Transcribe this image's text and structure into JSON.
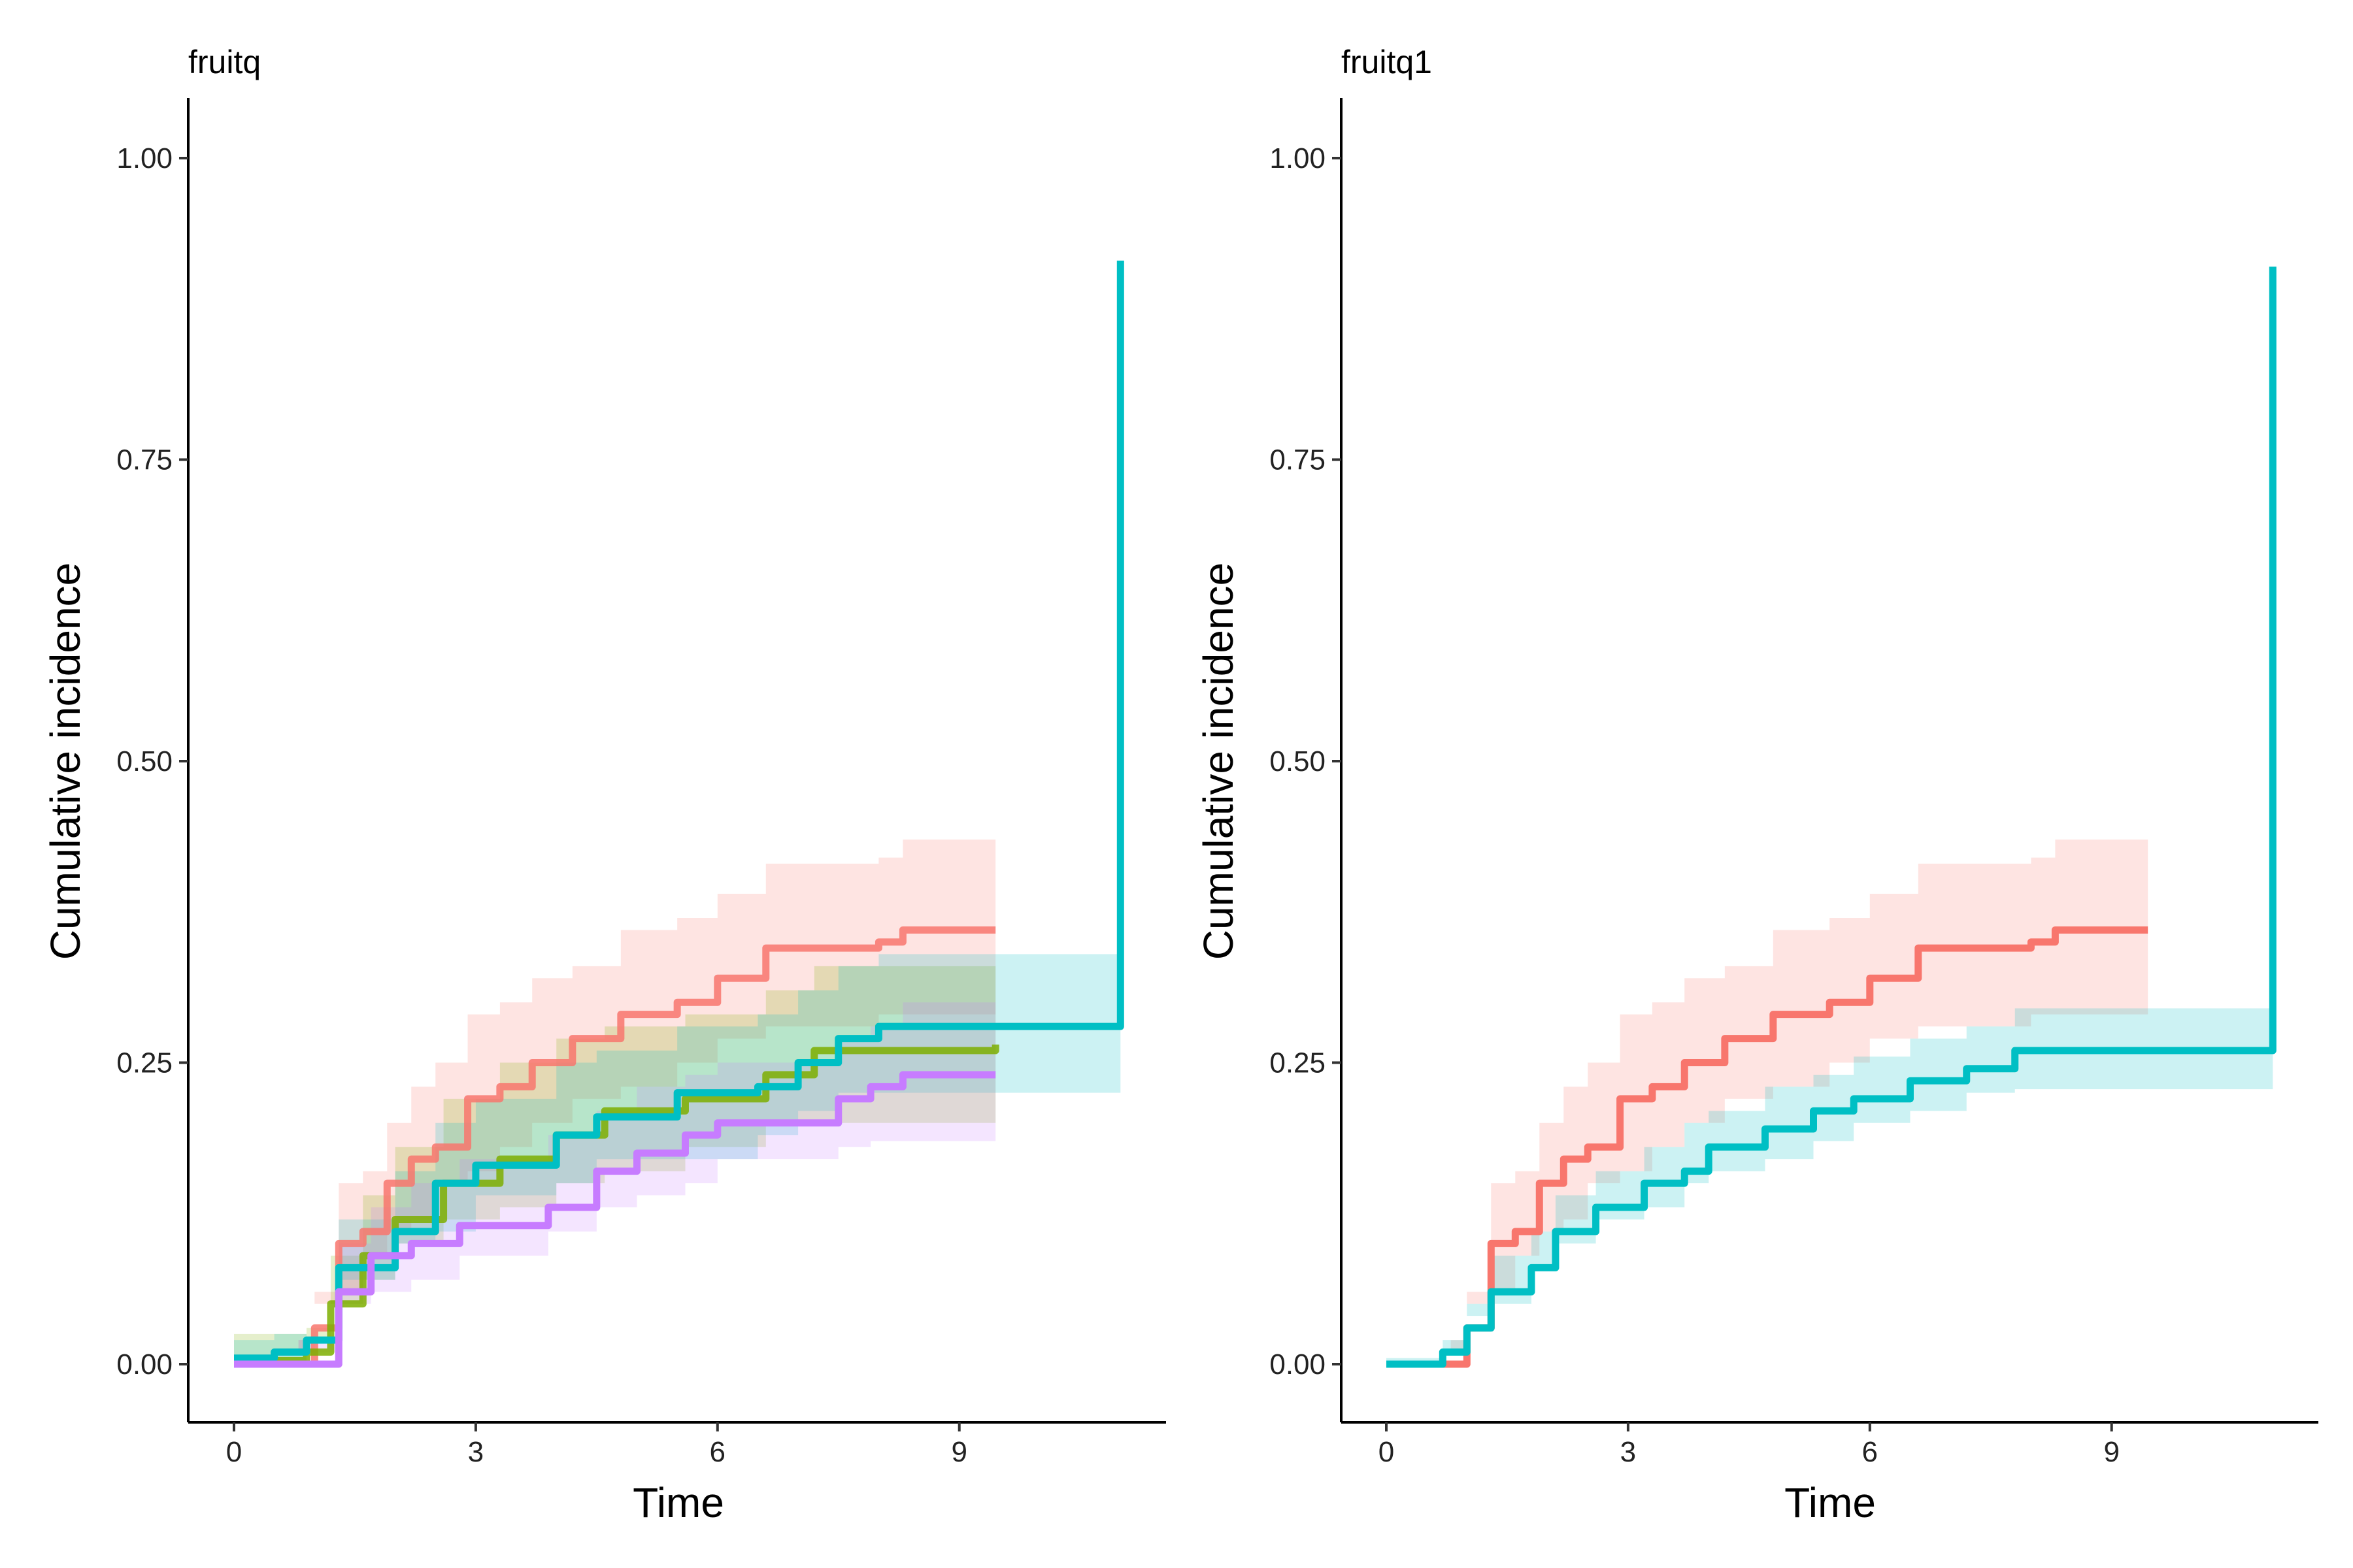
{
  "chart_data": [
    {
      "type": "line",
      "title": "fruitq",
      "xlabel": "Time",
      "ylabel": "Cumulative incidence",
      "xlim": [
        -0.6,
        11.6
      ],
      "ylim": [
        -0.1,
        1.05
      ],
      "xticks": [
        "0",
        "3",
        "6",
        "9"
      ],
      "yticks": [
        "0.00",
        "0.25",
        "0.50",
        "0.75",
        "1.00"
      ],
      "grid": false,
      "legend": "none",
      "series": [
        {
          "color": "#F8766D",
          "points": [
            [
              0,
              0,
              0,
              0
            ],
            [
              0.8,
              0,
              0,
              0.02
            ],
            [
              1,
              0.03,
              0.01,
              0.06
            ],
            [
              1.3,
              0.1,
              0.05,
              0.15
            ],
            [
              1.6,
              0.11,
              0.06,
              0.16
            ],
            [
              1.9,
              0.15,
              0.09,
              0.2
            ],
            [
              2.2,
              0.17,
              0.11,
              0.23
            ],
            [
              2.5,
              0.18,
              0.12,
              0.25
            ],
            [
              2.9,
              0.22,
              0.15,
              0.29
            ],
            [
              3.3,
              0.23,
              0.16,
              0.3
            ],
            [
              3.7,
              0.25,
              0.18,
              0.32
            ],
            [
              4.2,
              0.27,
              0.2,
              0.33
            ],
            [
              4.8,
              0.29,
              0.22,
              0.36
            ],
            [
              5.5,
              0.3,
              0.23,
              0.37
            ],
            [
              6,
              0.32,
              0.25,
              0.39
            ],
            [
              6.6,
              0.345,
              0.27,
              0.415
            ],
            [
              8,
              0.35,
              0.28,
              0.42
            ],
            [
              8.3,
              0.36,
              0.29,
              0.435
            ],
            [
              9.45,
              0.36,
              0.29,
              0.435
            ]
          ]
        },
        {
          "color": "#7CAE00",
          "points": [
            [
              0,
              0.003,
              0,
              0.025
            ],
            [
              0.9,
              0.01,
              0,
              0.03
            ],
            [
              1.2,
              0.05,
              0.02,
              0.09
            ],
            [
              1.6,
              0.09,
              0.05,
              0.14
            ],
            [
              2,
              0.12,
              0.07,
              0.18
            ],
            [
              2.6,
              0.15,
              0.1,
              0.22
            ],
            [
              3.3,
              0.17,
              0.12,
              0.25
            ],
            [
              4,
              0.19,
              0.13,
              0.27
            ],
            [
              4.6,
              0.21,
              0.15,
              0.28
            ],
            [
              5.6,
              0.22,
              0.16,
              0.29
            ],
            [
              6.6,
              0.24,
              0.18,
              0.31
            ],
            [
              7.2,
              0.26,
              0.2,
              0.33
            ],
            [
              9.45,
              0.265,
              0.2,
              0.33
            ]
          ]
        },
        {
          "color": "#00BFC4",
          "points": [
            [
              0,
              0.005,
              0,
              0.02
            ],
            [
              0.5,
              0.01,
              0,
              0.025
            ],
            [
              0.9,
              0.02,
              0,
              0.04
            ],
            [
              1.3,
              0.08,
              0.04,
              0.12
            ],
            [
              2,
              0.11,
              0.07,
              0.16
            ],
            [
              2.5,
              0.15,
              0.1,
              0.2
            ],
            [
              3,
              0.165,
              0.11,
              0.22
            ],
            [
              4,
              0.19,
              0.14,
              0.25
            ],
            [
              4.5,
              0.205,
              0.15,
              0.26
            ],
            [
              5.5,
              0.225,
              0.17,
              0.28
            ],
            [
              6.5,
              0.23,
              0.17,
              0.29
            ],
            [
              7,
              0.25,
              0.19,
              0.31
            ],
            [
              7.5,
              0.27,
              0.21,
              0.33
            ],
            [
              8,
              0.28,
              0.225,
              0.34
            ],
            [
              11,
              0.28,
              0.225,
              0.34
            ],
            [
              11,
              0.915,
              0.225,
              0.34
            ]
          ]
        },
        {
          "color": "#C77CFF",
          "points": [
            [
              0,
              0,
              0,
              0
            ],
            [
              0.8,
              0,
              0,
              0.01
            ],
            [
              1.3,
              0.06,
              0.02,
              0.1
            ],
            [
              1.7,
              0.09,
              0.05,
              0.13
            ],
            [
              2.2,
              0.1,
              0.06,
              0.15
            ],
            [
              2.8,
              0.115,
              0.07,
              0.17
            ],
            [
              3.9,
              0.13,
              0.09,
              0.19
            ],
            [
              4.5,
              0.16,
              0.11,
              0.21
            ],
            [
              5,
              0.175,
              0.13,
              0.23
            ],
            [
              5.6,
              0.19,
              0.14,
              0.24
            ],
            [
              6,
              0.2,
              0.15,
              0.25
            ],
            [
              7.5,
              0.22,
              0.17,
              0.27
            ],
            [
              7.9,
              0.23,
              0.18,
              0.28
            ],
            [
              8.3,
              0.24,
              0.185,
              0.3
            ],
            [
              9.45,
              0.24,
              0.185,
              0.3
            ]
          ]
        }
      ]
    },
    {
      "type": "line",
      "title": "fruitq1",
      "xlabel": "Time",
      "ylabel": "Cumulative incidence",
      "xlim": [
        -0.6,
        11.6
      ],
      "ylim": [
        -0.1,
        1.05
      ],
      "xticks": [
        "0",
        "3",
        "6",
        "9"
      ],
      "yticks": [
        "0.00",
        "0.25",
        "0.50",
        "0.75",
        "1.00"
      ],
      "grid": false,
      "legend": "none",
      "series": [
        {
          "color": "#F8766D",
          "points": [
            [
              0,
              0,
              0,
              0
            ],
            [
              0.8,
              0,
              0,
              0.02
            ],
            [
              1,
              0.03,
              0.01,
              0.06
            ],
            [
              1.3,
              0.1,
              0.05,
              0.15
            ],
            [
              1.6,
              0.11,
              0.06,
              0.16
            ],
            [
              1.9,
              0.15,
              0.09,
              0.2
            ],
            [
              2.2,
              0.17,
              0.11,
              0.23
            ],
            [
              2.5,
              0.18,
              0.12,
              0.25
            ],
            [
              2.9,
              0.22,
              0.15,
              0.29
            ],
            [
              3.3,
              0.23,
              0.16,
              0.3
            ],
            [
              3.7,
              0.25,
              0.18,
              0.32
            ],
            [
              4.2,
              0.27,
              0.2,
              0.33
            ],
            [
              4.8,
              0.29,
              0.22,
              0.36
            ],
            [
              5.5,
              0.3,
              0.23,
              0.37
            ],
            [
              6,
              0.32,
              0.25,
              0.39
            ],
            [
              6.6,
              0.345,
              0.27,
              0.415
            ],
            [
              8,
              0.35,
              0.28,
              0.42
            ],
            [
              8.3,
              0.36,
              0.29,
              0.435
            ],
            [
              9.45,
              0.36,
              0.29,
              0.435
            ]
          ]
        },
        {
          "color": "#00BFC4",
          "points": [
            [
              0,
              0,
              0,
              0.005
            ],
            [
              0.7,
              0.01,
              0,
              0.02
            ],
            [
              1,
              0.03,
              0.01,
              0.05
            ],
            [
              1.3,
              0.06,
              0.04,
              0.09
            ],
            [
              1.8,
              0.08,
              0.05,
              0.11
            ],
            [
              2.1,
              0.11,
              0.08,
              0.14
            ],
            [
              2.6,
              0.13,
              0.1,
              0.16
            ],
            [
              3.2,
              0.15,
              0.12,
              0.18
            ],
            [
              3.7,
              0.16,
              0.13,
              0.2
            ],
            [
              4,
              0.18,
              0.15,
              0.21
            ],
            [
              4.7,
              0.195,
              0.16,
              0.23
            ],
            [
              5.3,
              0.21,
              0.17,
              0.24
            ],
            [
              5.8,
              0.22,
              0.185,
              0.255
            ],
            [
              6.5,
              0.235,
              0.2,
              0.27
            ],
            [
              7.2,
              0.245,
              0.21,
              0.28
            ],
            [
              7.8,
              0.26,
              0.225,
              0.295
            ],
            [
              11,
              0.262,
              0.228,
              0.295
            ],
            [
              11,
              0.91,
              0.228,
              0.295
            ]
          ]
        }
      ]
    }
  ]
}
